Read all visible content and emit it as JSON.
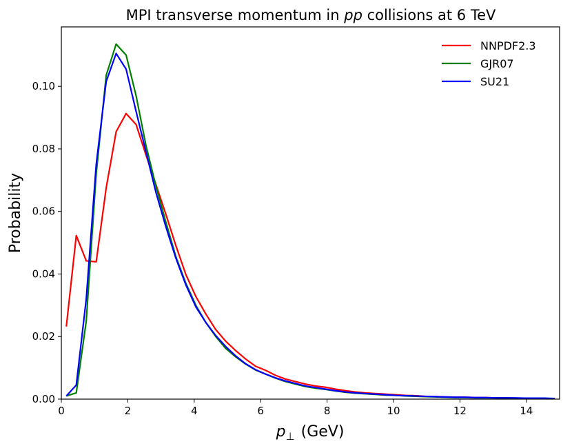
{
  "chart_data": {
    "type": "line",
    "title_parts": [
      "MPI transverse momentum in ",
      "pp",
      " collisions at 6 TeV"
    ],
    "title": "MPI transverse momentum in pp collisions at 6 TeV",
    "xlabel_symbol": "p",
    "xlabel_subscript": "⊥",
    "xlabel_unit": "(GeV)",
    "xlabel": "p⊥ (GeV)",
    "ylabel": "Probability",
    "xlim": [
      0,
      15
    ],
    "ylim": [
      0,
      0.119
    ],
    "xticks": [
      0,
      2,
      4,
      6,
      8,
      10,
      12,
      14
    ],
    "xtick_labels": [
      "0",
      "2",
      "4",
      "6",
      "8",
      "10",
      "12",
      "14"
    ],
    "yticks": [
      0,
      0.02,
      0.04,
      0.06,
      0.08,
      0.1
    ],
    "ytick_labels": [
      "0.00",
      "0.02",
      "0.04",
      "0.06",
      "0.08",
      "0.10"
    ],
    "grid": false,
    "legend_position": "top-right",
    "x": [
      0.15,
      0.45,
      0.75,
      1.05,
      1.35,
      1.65,
      1.95,
      2.25,
      2.55,
      2.85,
      3.15,
      3.45,
      3.75,
      4.05,
      4.35,
      4.65,
      4.95,
      5.25,
      5.55,
      5.85,
      6.15,
      6.45,
      6.75,
      7.05,
      7.35,
      7.65,
      7.95,
      8.25,
      8.55,
      8.85,
      9.15,
      9.45,
      9.75,
      10.05,
      10.35,
      10.65,
      10.95,
      11.25,
      11.55,
      11.85,
      12.15,
      12.45,
      12.75,
      13.05,
      13.35,
      13.65,
      13.95,
      14.25,
      14.55,
      14.85
    ],
    "series": [
      {
        "name": "NNPDF2.3",
        "color": "#ff0000",
        "values": [
          0.0232,
          0.0523,
          0.0442,
          0.0439,
          0.0675,
          0.0855,
          0.0913,
          0.0878,
          0.078,
          0.0685,
          0.059,
          0.049,
          0.0398,
          0.0328,
          0.0272,
          0.0222,
          0.0185,
          0.0155,
          0.0128,
          0.0105,
          0.0092,
          0.0076,
          0.0064,
          0.0056,
          0.0048,
          0.0042,
          0.0038,
          0.0032,
          0.0027,
          0.0023,
          0.002,
          0.0018,
          0.0016,
          0.0014,
          0.0012,
          0.0011,
          0.0009,
          0.0008,
          0.0007,
          0.0006,
          0.0006,
          0.0005,
          0.0005,
          0.0004,
          0.0004,
          0.0003,
          0.0003,
          0.0003,
          0.0002,
          0.0002
        ]
      },
      {
        "name": "GJR07",
        "color": "#008000",
        "values": [
          0.001,
          0.002,
          0.025,
          0.072,
          0.1035,
          0.1135,
          0.11,
          0.097,
          0.081,
          0.068,
          0.0565,
          0.0455,
          0.037,
          0.03,
          0.0245,
          0.02,
          0.0162,
          0.0135,
          0.0112,
          0.0093,
          0.008,
          0.0067,
          0.0056,
          0.0048,
          0.004,
          0.0035,
          0.0031,
          0.0026,
          0.0022,
          0.0019,
          0.0017,
          0.0015,
          0.0013,
          0.0012,
          0.001,
          0.0009,
          0.0008,
          0.0007,
          0.0006,
          0.0005,
          0.0005,
          0.0004,
          0.0004,
          0.0004,
          0.0003,
          0.0003,
          0.0003,
          0.0002,
          0.0002,
          0.0002
        ]
      },
      {
        "name": "SU21",
        "color": "#0000ff",
        "values": [
          0.001,
          0.0045,
          0.032,
          0.075,
          0.1015,
          0.1105,
          0.1055,
          0.092,
          0.079,
          0.066,
          0.055,
          0.045,
          0.0365,
          0.0295,
          0.0245,
          0.0203,
          0.0168,
          0.0138,
          0.0113,
          0.0094,
          0.008,
          0.0068,
          0.0058,
          0.005,
          0.0042,
          0.0037,
          0.0032,
          0.0027,
          0.0023,
          0.002,
          0.0018,
          0.0016,
          0.0014,
          0.0012,
          0.0011,
          0.001,
          0.0009,
          0.0008,
          0.0007,
          0.0006,
          0.0006,
          0.0005,
          0.0005,
          0.0004,
          0.0004,
          0.0004,
          0.0003,
          0.0003,
          0.0003,
          0.0002
        ]
      }
    ]
  }
}
